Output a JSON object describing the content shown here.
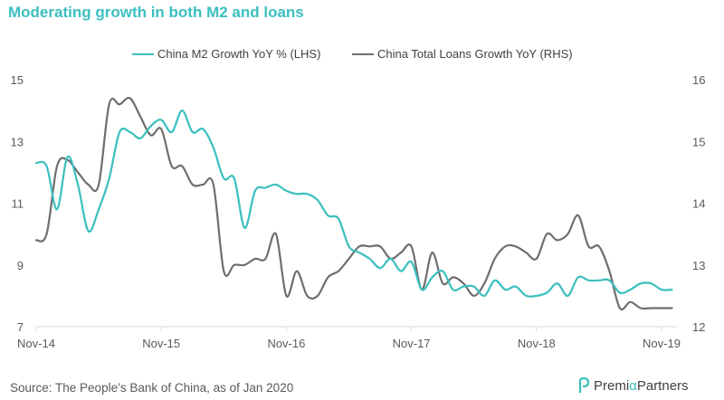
{
  "title": "Moderating growth in both M2 and loans",
  "source": "Source: The People’s Bank of China, as of Jan 2020",
  "brand": {
    "name_a": "Premi",
    "name_alpha": "α",
    "name_b": " Partners",
    "color": "#3BBFBF"
  },
  "chart_data": {
    "type": "line",
    "x_categories": [
      "Nov-14",
      "Nov-15",
      "Nov-16",
      "Nov-17",
      "Nov-18",
      "Nov-19"
    ],
    "y_left": {
      "ticks": [
        "15",
        "13",
        "11",
        "9",
        "7"
      ],
      "min": 7,
      "max": 15
    },
    "y_right": {
      "ticks": [
        "16",
        "15",
        "14",
        "13",
        "12"
      ],
      "min": 12,
      "max": 16
    },
    "grid": false,
    "legend_position": "top",
    "series": [
      {
        "name": "China M2 Growth YoY % (LHS)",
        "axis": "left",
        "color": "#3BBFBF",
        "x": [
          "2014-11",
          "2014-12",
          "2015-01",
          "2015-02",
          "2015-03",
          "2015-04",
          "2015-05",
          "2015-06",
          "2015-07",
          "2015-08",
          "2015-09",
          "2015-10",
          "2015-11",
          "2015-12",
          "2016-01",
          "2016-02",
          "2016-03",
          "2016-04",
          "2016-05",
          "2016-06",
          "2016-07",
          "2016-08",
          "2016-09",
          "2016-10",
          "2016-11",
          "2016-12",
          "2017-01",
          "2017-02",
          "2017-03",
          "2017-04",
          "2017-05",
          "2017-06",
          "2017-07",
          "2017-08",
          "2017-09",
          "2017-10",
          "2017-11",
          "2017-12",
          "2018-01",
          "2018-02",
          "2018-03",
          "2018-04",
          "2018-05",
          "2018-06",
          "2018-07",
          "2018-08",
          "2018-09",
          "2018-10",
          "2018-11",
          "2018-12",
          "2019-01",
          "2019-02",
          "2019-03",
          "2019-04",
          "2019-05",
          "2019-06",
          "2019-07",
          "2019-08",
          "2019-09",
          "2019-10",
          "2019-11",
          "2019-12"
        ],
        "values": [
          12.3,
          12.2,
          10.8,
          12.5,
          11.6,
          10.1,
          10.8,
          11.8,
          13.3,
          13.3,
          13.1,
          13.5,
          13.7,
          13.3,
          14.0,
          13.3,
          13.4,
          12.8,
          11.8,
          11.8,
          10.2,
          11.4,
          11.5,
          11.6,
          11.4,
          11.3,
          11.3,
          11.1,
          10.6,
          10.5,
          9.6,
          9.4,
          9.2,
          8.9,
          9.2,
          8.8,
          9.1,
          8.2,
          8.6,
          8.8,
          8.2,
          8.3,
          8.3,
          8.0,
          8.5,
          8.2,
          8.3,
          8.0,
          8.0,
          8.1,
          8.4,
          8.0,
          8.6,
          8.5,
          8.5,
          8.5,
          8.1,
          8.2,
          8.4,
          8.4,
          8.2,
          8.2
        ]
      },
      {
        "name": "China Total Loans Growth YoY (RHS)",
        "axis": "right",
        "color": "#6E6E6E",
        "x": [
          "2014-11",
          "2014-12",
          "2015-01",
          "2015-02",
          "2015-03",
          "2015-04",
          "2015-05",
          "2015-06",
          "2015-07",
          "2015-08",
          "2015-09",
          "2015-10",
          "2015-11",
          "2015-12",
          "2016-01",
          "2016-02",
          "2016-03",
          "2016-04",
          "2016-05",
          "2016-06",
          "2016-07",
          "2016-08",
          "2016-09",
          "2016-10",
          "2016-11",
          "2016-12",
          "2017-01",
          "2017-02",
          "2017-03",
          "2017-04",
          "2017-05",
          "2017-06",
          "2017-07",
          "2017-08",
          "2017-09",
          "2017-10",
          "2017-11",
          "2017-12",
          "2018-01",
          "2018-02",
          "2018-03",
          "2018-04",
          "2018-05",
          "2018-06",
          "2018-07",
          "2018-08",
          "2018-09",
          "2018-10",
          "2018-11",
          "2018-12",
          "2019-01",
          "2019-02",
          "2019-03",
          "2019-04",
          "2019-05",
          "2019-06",
          "2019-07",
          "2019-08",
          "2019-09",
          "2019-10",
          "2019-11",
          "2019-12"
        ],
        "values": [
          13.4,
          13.5,
          14.6,
          14.7,
          14.5,
          14.3,
          14.3,
          15.6,
          15.6,
          15.7,
          15.4,
          15.1,
          15.2,
          14.6,
          14.6,
          14.3,
          14.3,
          14.3,
          12.9,
          13.0,
          13.0,
          13.1,
          13.1,
          13.5,
          12.5,
          12.9,
          12.5,
          12.5,
          12.8,
          12.9,
          13.1,
          13.3,
          13.3,
          13.3,
          13.1,
          13.2,
          13.3,
          12.6,
          13.2,
          12.7,
          12.8,
          12.7,
          12.5,
          12.7,
          13.1,
          13.3,
          13.3,
          13.2,
          13.1,
          13.5,
          13.4,
          13.5,
          13.8,
          13.3,
          13.3,
          12.9,
          12.3,
          12.4,
          12.3,
          12.3,
          12.3,
          12.3
        ]
      }
    ]
  }
}
